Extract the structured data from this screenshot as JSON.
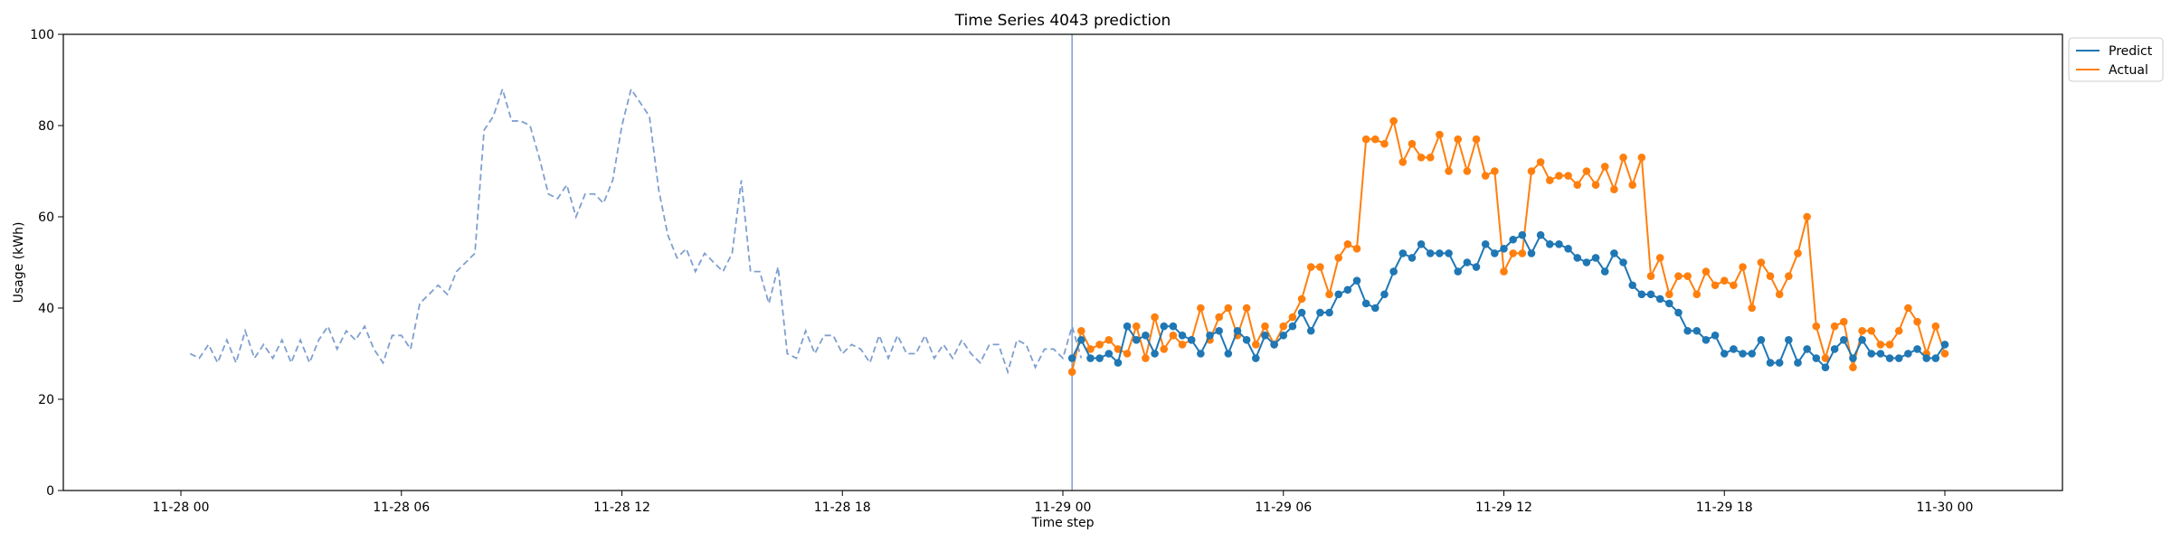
{
  "chart_data": {
    "type": "line",
    "title": "Time Series 4043 prediction",
    "xlabel": "Time step",
    "ylabel": "Usage (kWh)",
    "ylim": [
      0,
      100
    ],
    "xlim_hours": [
      -3.2,
      51.2
    ],
    "x_tick_hours": [
      0,
      6,
      12,
      18,
      24,
      30,
      36,
      42,
      48
    ],
    "x_tick_labels": [
      "11-28 00",
      "11-28 06",
      "11-28 12",
      "11-28 18",
      "11-29 00",
      "11-29 06",
      "11-29 12",
      "11-29 18",
      "11-30 00"
    ],
    "y_ticks": [
      0,
      20,
      40,
      60,
      80,
      100
    ],
    "legend_position": "upper right, outside plot",
    "forecast_start_hour": 24.25,
    "step_hours": 0.25,
    "history": {
      "start_hour": 0.25,
      "color": "#7f9fcf",
      "style": "dashed",
      "values": [
        30,
        29,
        32,
        28,
        33,
        28,
        35,
        29,
        32,
        29,
        33,
        28,
        33,
        28,
        33,
        36,
        31,
        35,
        33,
        36,
        31,
        28,
        34,
        34,
        31,
        41,
        43,
        45,
        43,
        48,
        50,
        52,
        79,
        82,
        88,
        81,
        81,
        80,
        73,
        65,
        64,
        67,
        60,
        65,
        65,
        63,
        68,
        80,
        88,
        85,
        82,
        66,
        56,
        51,
        53,
        48,
        52,
        50,
        48,
        52,
        68,
        48,
        48,
        41,
        49,
        30,
        29,
        35,
        30,
        34,
        34,
        30,
        32,
        31,
        28,
        34,
        29,
        34,
        30,
        30,
        34,
        29,
        32,
        29,
        33,
        30,
        28,
        32,
        32,
        26,
        33,
        32,
        27,
        31,
        31,
        29,
        36,
        29
      ]
    },
    "series": [
      {
        "name": "Predict",
        "color": "#1f77b4",
        "values": [
          29,
          33,
          29,
          29,
          30,
          28,
          36,
          33,
          34,
          30,
          36,
          36,
          34,
          33,
          30,
          34,
          35,
          30,
          35,
          33,
          29,
          34,
          32,
          34,
          36,
          39,
          35,
          39,
          39,
          43,
          44,
          46,
          41,
          40,
          43,
          48,
          52,
          51,
          54,
          52,
          52,
          52,
          48,
          50,
          49,
          54,
          52,
          53,
          55,
          56,
          52,
          56,
          54,
          54,
          53,
          51,
          50,
          51,
          48,
          52,
          50,
          45,
          43,
          43,
          42,
          41,
          39,
          35,
          35,
          33,
          34,
          30,
          31,
          30,
          30,
          33,
          28,
          28,
          33,
          28,
          31,
          29,
          27,
          31,
          33,
          29,
          33,
          30,
          30,
          29,
          29,
          30,
          31,
          29,
          29,
          32
        ]
      },
      {
        "name": "Actual",
        "color": "#ff7f0e",
        "values": [
          26,
          35,
          31,
          32,
          33,
          31,
          30,
          36,
          29,
          38,
          31,
          34,
          32,
          33,
          40,
          33,
          38,
          40,
          34,
          40,
          32,
          36,
          32,
          36,
          38,
          42,
          49,
          49,
          43,
          51,
          54,
          53,
          77,
          77,
          76,
          81,
          72,
          76,
          73,
          73,
          78,
          70,
          77,
          70,
          77,
          69,
          70,
          48,
          52,
          52,
          70,
          72,
          68,
          69,
          69,
          67,
          70,
          67,
          71,
          66,
          73,
          67,
          73,
          47,
          51,
          43,
          47,
          47,
          43,
          48,
          45,
          46,
          45,
          49,
          40,
          50,
          47,
          43,
          47,
          52,
          60,
          36,
          29,
          36,
          37,
          27,
          35,
          35,
          32,
          32,
          35,
          40,
          37,
          30,
          36,
          30
        ]
      }
    ]
  }
}
